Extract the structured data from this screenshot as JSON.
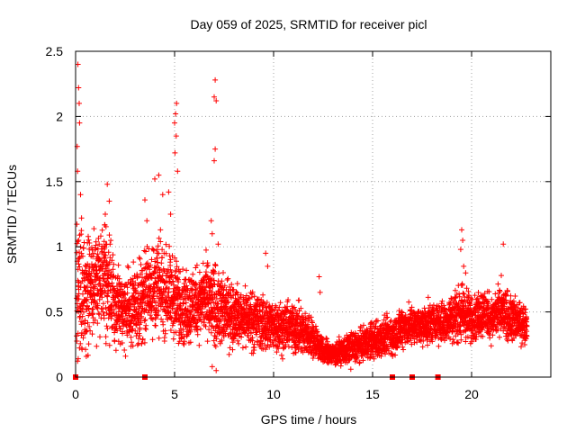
{
  "chart_data": {
    "type": "scatter",
    "title": "Day 059 of 2025, SRMTID for receiver picl",
    "xlabel": "GPS time / hours",
    "ylabel": "SRMTID / TECUs",
    "xlim": [
      0,
      24
    ],
    "ylim": [
      0,
      2.5
    ],
    "xticks": [
      0,
      5,
      10,
      15,
      20
    ],
    "xtick_labels": [
      "0",
      "5",
      "10",
      "15",
      "20"
    ],
    "yticks": [
      0,
      0.5,
      1,
      1.5,
      2,
      2.5
    ],
    "ytick_labels": [
      "0",
      "0.5",
      "1",
      "1.5",
      "2",
      "2.5"
    ],
    "grid": true,
    "marker": "+",
    "color": "#ff0000",
    "zero_value_times": [
      0,
      3.5,
      16,
      17,
      18.3
    ],
    "envelope": {
      "hours": [
        0,
        0.5,
        1,
        1.5,
        2,
        2.5,
        3,
        3.5,
        4,
        4.5,
        5,
        5.5,
        6,
        6.5,
        7,
        7.5,
        8,
        8.5,
        9,
        9.5,
        10,
        10.5,
        11,
        11.5,
        12,
        12.5,
        13,
        13.5,
        14,
        14.5,
        15,
        15.5,
        16,
        16.5,
        17,
        17.5,
        18,
        18.5,
        19,
        19.5,
        20,
        20.5,
        21,
        21.5,
        22,
        22.5,
        22.8
      ],
      "center": [
        0.7,
        0.6,
        0.75,
        0.8,
        0.55,
        0.5,
        0.55,
        0.65,
        0.7,
        0.65,
        0.6,
        0.55,
        0.55,
        0.6,
        0.55,
        0.5,
        0.5,
        0.45,
        0.45,
        0.4,
        0.4,
        0.38,
        0.38,
        0.35,
        0.3,
        0.2,
        0.18,
        0.2,
        0.22,
        0.25,
        0.28,
        0.3,
        0.32,
        0.38,
        0.4,
        0.4,
        0.42,
        0.42,
        0.45,
        0.5,
        0.45,
        0.5,
        0.45,
        0.5,
        0.45,
        0.42,
        0.42
      ],
      "spread": [
        0.4,
        0.35,
        0.35,
        0.35,
        0.25,
        0.22,
        0.25,
        0.3,
        0.3,
        0.28,
        0.25,
        0.25,
        0.22,
        0.25,
        0.25,
        0.22,
        0.2,
        0.18,
        0.18,
        0.16,
        0.16,
        0.15,
        0.15,
        0.15,
        0.12,
        0.08,
        0.07,
        0.08,
        0.1,
        0.1,
        0.12,
        0.12,
        0.12,
        0.12,
        0.12,
        0.12,
        0.12,
        0.12,
        0.15,
        0.18,
        0.15,
        0.15,
        0.15,
        0.15,
        0.15,
        0.12,
        0.12
      ]
    },
    "spikes": [
      {
        "x": 0.12,
        "y": 2.4
      },
      {
        "x": 0.15,
        "y": 2.22
      },
      {
        "x": 0.18,
        "y": 2.1
      },
      {
        "x": 0.2,
        "y": 1.95
      },
      {
        "x": 0.08,
        "y": 1.77
      },
      {
        "x": 0.1,
        "y": 1.58
      },
      {
        "x": 0.25,
        "y": 1.4
      },
      {
        "x": 0.3,
        "y": 1.22
      },
      {
        "x": 0.15,
        "y": 1.05
      },
      {
        "x": 1.6,
        "y": 1.48
      },
      {
        "x": 1.7,
        "y": 1.35
      },
      {
        "x": 1.5,
        "y": 1.25
      },
      {
        "x": 3.5,
        "y": 1.36
      },
      {
        "x": 3.6,
        "y": 1.2
      },
      {
        "x": 4.0,
        "y": 1.52
      },
      {
        "x": 4.2,
        "y": 1.55
      },
      {
        "x": 4.4,
        "y": 1.4
      },
      {
        "x": 4.7,
        "y": 1.42
      },
      {
        "x": 4.8,
        "y": 1.25
      },
      {
        "x": 5.1,
        "y": 2.1
      },
      {
        "x": 5.05,
        "y": 2.02
      },
      {
        "x": 5.0,
        "y": 1.95
      },
      {
        "x": 5.08,
        "y": 1.85
      },
      {
        "x": 5.02,
        "y": 1.72
      },
      {
        "x": 5.15,
        "y": 1.58
      },
      {
        "x": 6.85,
        "y": 1.2
      },
      {
        "x": 6.9,
        "y": 1.1
      },
      {
        "x": 7.05,
        "y": 2.28
      },
      {
        "x": 7.0,
        "y": 2.15
      },
      {
        "x": 7.1,
        "y": 2.12
      },
      {
        "x": 7.05,
        "y": 1.75
      },
      {
        "x": 7.0,
        "y": 1.66
      },
      {
        "x": 7.2,
        "y": 1.02
      },
      {
        "x": 7.1,
        "y": 0.05
      },
      {
        "x": 6.9,
        "y": 0.08
      },
      {
        "x": 9.6,
        "y": 0.95
      },
      {
        "x": 9.7,
        "y": 0.85
      },
      {
        "x": 12.3,
        "y": 0.77
      },
      {
        "x": 12.35,
        "y": 0.65
      },
      {
        "x": 19.5,
        "y": 1.13
      },
      {
        "x": 19.55,
        "y": 1.05
      },
      {
        "x": 19.45,
        "y": 0.98
      },
      {
        "x": 19.6,
        "y": 0.85
      },
      {
        "x": 19.7,
        "y": 0.8
      },
      {
        "x": 21.6,
        "y": 1.02
      },
      {
        "x": 21.5,
        "y": 0.78
      }
    ]
  }
}
